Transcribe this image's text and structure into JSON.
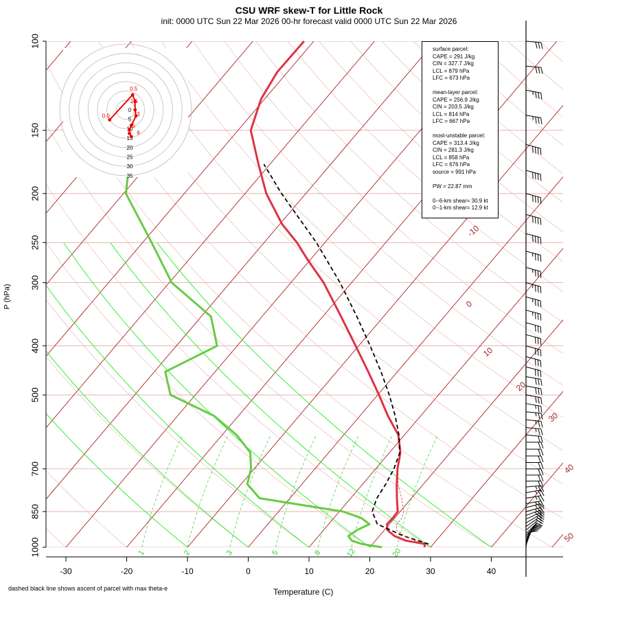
{
  "header": {
    "title": "CSU WRF skew-T for Little Rock",
    "subtitle": "init: 0000 UTC Sun 22 Mar 2026     00-hr forecast valid 0000 UTC Sun 22 Mar 2026"
  },
  "footer_note": "dashed black line shows ascent of parcel with max theta-e",
  "stats": {
    "surface": {
      "heading": "surface parcel:",
      "cape": "CAPE = 291 J/kg",
      "cin": "CIN = 327.7 J/kg",
      "lcl": "LCL = 879 hPa",
      "lfc": "LFC = 673 hPa"
    },
    "mean_layer": {
      "heading": "mean-layer parcel:",
      "cape": "CAPE = 256.9 J/kg",
      "cin": "CIN = 203.5 J/kg",
      "lcl": "LCL = 814 hPa",
      "lfc": "LFC = 667 hPa"
    },
    "most_unstable": {
      "heading": "most-unstable parcel:",
      "cape": "CAPE = 313.4 J/kg",
      "cin": "CIN = 281.3 J/kg",
      "lcl": "LCL = 858 hPa",
      "lfc": "LFC = 676 hPa",
      "source": "source = 991 hPa"
    },
    "pw": "PW =  22.87 mm",
    "shear_06": "0--6-km shear= 30.9 kt",
    "shear_01": "0--1-km shear= 12.9 kt"
  },
  "colors": {
    "temperature": "#dd3344",
    "dewpoint": "#66cc44",
    "parcel": "#000000",
    "isotherm": "#aa2222",
    "isobar": "#dd9999",
    "dry_adiabat": "#e8b0b0",
    "mixing_ratio": "#33cc33",
    "moist_adiabat": "#22ee22",
    "hodograph": "#ee0000",
    "hodo_ring": "#bbbbbb"
  },
  "chart_data": {
    "type": "line",
    "title": "CSU WRF skew-T for Little Rock",
    "xlabel": "Temperature (C)",
    "ylabel": "P (hPa)",
    "x_ticks": [
      -30,
      -20,
      -10,
      0,
      10,
      20,
      30,
      40
    ],
    "y_ticks": [
      100,
      150,
      200,
      250,
      300,
      400,
      500,
      700,
      850,
      1000
    ],
    "pressure_range": [
      1000,
      100
    ],
    "temperature_range": [
      -33,
      45
    ],
    "isotherm_labels": [
      -10,
      0,
      10,
      20,
      30,
      40,
      50
    ],
    "mixing_ratio_labels": [
      1,
      2,
      3,
      5,
      8,
      12,
      20
    ],
    "series": [
      {
        "name": "temperature",
        "pressure": [
          1000,
          985,
          970,
          950,
          925,
          900,
          875,
          850,
          800,
          750,
          700,
          650,
          600,
          550,
          500,
          450,
          400,
          350,
          300,
          270,
          250,
          230,
          200,
          175,
          150,
          130,
          115,
          100
        ],
        "values": [
          29,
          28.6,
          25.0,
          22.5,
          20.5,
          19.6,
          19.7,
          19.6,
          17.6,
          15.6,
          13.6,
          11.8,
          9.0,
          4.6,
          0.2,
          -4.8,
          -10.5,
          -17.0,
          -24.6,
          -30.5,
          -34.6,
          -39.6,
          -46.5,
          -51.9,
          -57.9,
          -60.6,
          -61.7,
          -61.6
        ]
      },
      {
        "name": "dewpoint",
        "pressure": [
          1000,
          985,
          970,
          950,
          925,
          900,
          875,
          850,
          800,
          750,
          700,
          650,
          600,
          550,
          500,
          450,
          400,
          350,
          300,
          250,
          200,
          175
        ],
        "values": [
          22,
          18.2,
          16.1,
          14.9,
          15.5,
          16.7,
          14.5,
          10.6,
          -5.0,
          -9.0,
          -10.5,
          -12.9,
          -17.6,
          -24.0,
          -34.1,
          -38.2,
          -33.3,
          -38.4,
          -49.6,
          -58.5,
          -69.6,
          -73.2
        ]
      },
      {
        "name": "parcel",
        "pressure": [
          985,
          950,
          900,
          850,
          800,
          750,
          700,
          650,
          600,
          550,
          500,
          450,
          400,
          350,
          300,
          250,
          200,
          175
        ],
        "values": [
          29.2,
          24.0,
          18.0,
          15.4,
          14.3,
          13.8,
          13.0,
          11.7,
          9.1,
          5.8,
          1.9,
          -2.7,
          -8.1,
          -14.4,
          -21.9,
          -31.4,
          -44.0,
          -51.0
        ]
      }
    ],
    "hodograph": {
      "ring_labels": [
        0,
        5,
        10,
        15,
        20,
        25,
        30,
        35
      ],
      "point_labels": [
        "0.5",
        "0.0",
        "1.5",
        "3",
        "5",
        "6"
      ],
      "u": [
        -8.5,
        3.7,
        5.0,
        5.0,
        5.5,
        3.0,
        2.0,
        2.0,
        3.0
      ],
      "v": [
        -5.3,
        8.0,
        4.5,
        0,
        -3.2,
        -8.2,
        -10.5,
        -12.5,
        -14.2
      ]
    },
    "wind_barbs": {
      "pressure": [
        1000,
        990,
        980,
        970,
        960,
        950,
        940,
        925,
        910,
        895,
        880,
        865,
        850,
        835,
        820,
        800,
        780,
        760,
        740,
        720,
        700,
        680,
        660,
        640,
        620,
        600,
        580,
        560,
        540,
        520,
        500,
        480,
        460,
        440,
        420,
        400,
        380,
        360,
        340,
        320,
        300,
        280,
        260,
        240,
        220,
        200,
        180,
        160,
        140,
        125,
        112,
        100
      ],
      "speed_kt": [
        10,
        12,
        12,
        14,
        15,
        15,
        18,
        20,
        20,
        22,
        22,
        24,
        25,
        25,
        25,
        25,
        25,
        25,
        22,
        20,
        20,
        20,
        20,
        22,
        22,
        22,
        25,
        25,
        25,
        25,
        28,
        28,
        30,
        30,
        30,
        30,
        32,
        32,
        35,
        35,
        35,
        35,
        35,
        40,
        40,
        40,
        40,
        40,
        35,
        35,
        30,
        30
      ],
      "dir_deg": [
        190,
        200,
        205,
        210,
        215,
        220,
        225,
        230,
        235,
        240,
        245,
        250,
        255,
        255,
        260,
        260,
        260,
        265,
        270,
        270,
        270,
        270,
        270,
        270,
        270,
        275,
        275,
        275,
        275,
        280,
        280,
        280,
        280,
        285,
        285,
        285,
        285,
        285,
        285,
        285,
        285,
        285,
        285,
        285,
        285,
        285,
        285,
        285,
        280,
        280,
        275,
        275
      ]
    }
  }
}
